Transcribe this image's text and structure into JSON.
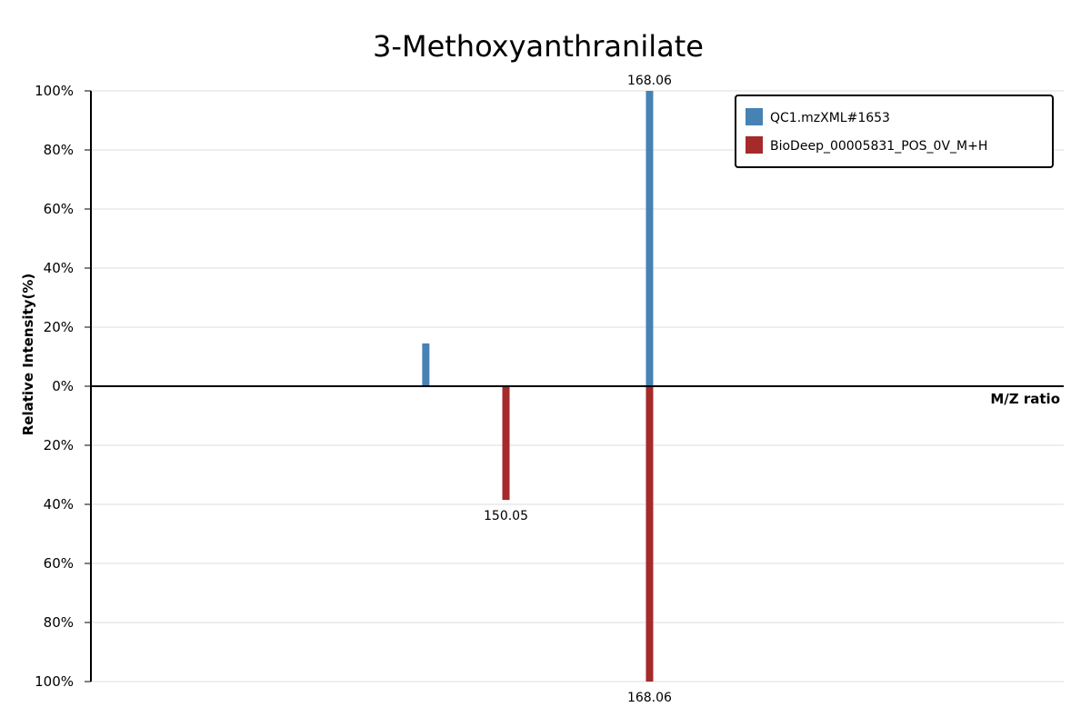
{
  "chart_data": {
    "type": "bar",
    "title": "3-Methoxyanthranilate",
    "xlabel": "M/Z ratio",
    "ylabel": "Relative Intensity(%)",
    "ylim": [
      -100,
      100
    ],
    "y_ticks": [
      {
        "value": 100,
        "label": "100%"
      },
      {
        "value": 80,
        "label": "80%"
      },
      {
        "value": 60,
        "label": "60%"
      },
      {
        "value": 40,
        "label": "40%"
      },
      {
        "value": 20,
        "label": "20%"
      },
      {
        "value": 0,
        "label": "0%"
      },
      {
        "value": -20,
        "label": "20%"
      },
      {
        "value": -40,
        "label": "40%"
      },
      {
        "value": -60,
        "label": "60%"
      },
      {
        "value": -80,
        "label": "80%"
      },
      {
        "value": -100,
        "label": "100%"
      }
    ],
    "grid": true,
    "legend_position": "top-right",
    "series": [
      {
        "name": "QC1.mzXML#1653",
        "color": "#4682b4",
        "direction": "up",
        "peaks": [
          {
            "mz": 140.0,
            "intensity": 14.5,
            "label": ""
          },
          {
            "mz": 168.06,
            "intensity": 100,
            "label": "168.06"
          }
        ]
      },
      {
        "name": "BioDeep_00005831_POS_0V_M+H",
        "color": "#a52a2a",
        "direction": "down",
        "peaks": [
          {
            "mz": 150.05,
            "intensity": 38.5,
            "label": "150.05"
          },
          {
            "mz": 168.06,
            "intensity": 100,
            "label": "168.06"
          }
        ]
      }
    ]
  }
}
